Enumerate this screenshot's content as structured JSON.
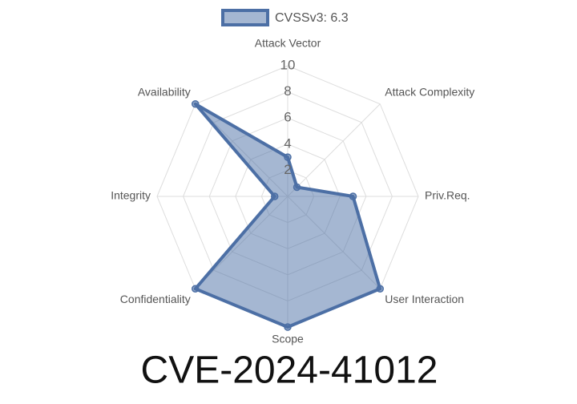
{
  "chart_data": {
    "type": "radar",
    "title": "CVE-2024-41012",
    "categories": [
      "Attack Vector",
      "Attack Complexity",
      "Priv.Req.",
      "User Interaction",
      "Scope",
      "Confidentiality",
      "Integrity",
      "Availability"
    ],
    "series": [
      {
        "name": "CVSSv3: 6.3",
        "color": "#4c6fa5",
        "values": [
          3,
          1,
          5,
          10,
          10,
          10,
          1,
          10
        ]
      }
    ],
    "rlim": [
      0,
      10
    ],
    "rticks": [
      2,
      4,
      6,
      8,
      10
    ],
    "grid": true,
    "legend": "top"
  }
}
